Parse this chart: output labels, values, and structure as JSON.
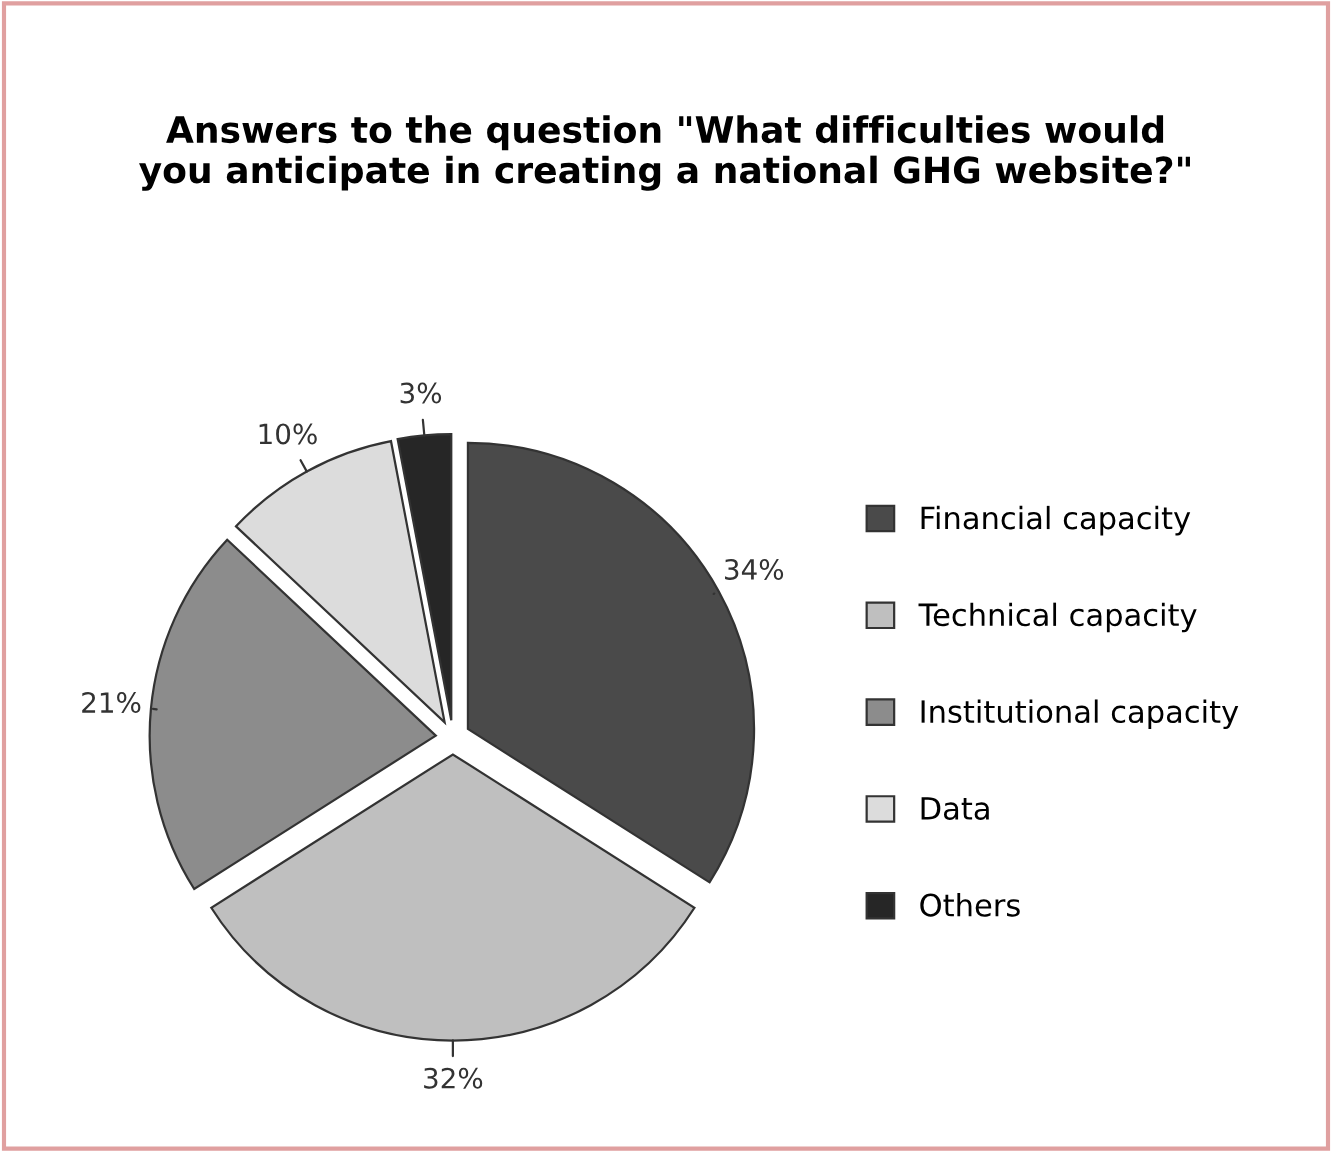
{
  "chart_data": {
    "type": "pie",
    "title": "Answers to the question \"What difficulties would\nyou anticipate in creating a national GHG website?\"",
    "categories": [
      "Financial capacity",
      "Technical capacity",
      "Institutional capacity",
      "Data",
      "Others"
    ],
    "values": [
      34,
      32,
      21,
      10,
      3
    ],
    "value_labels": [
      "34%",
      "32%",
      "21%",
      "10%",
      "3%"
    ],
    "colors": [
      "#4a4a4a",
      "#bfbfbf",
      "#8c8c8c",
      "#dcdcdc",
      "#262626"
    ],
    "legend": "right"
  }
}
